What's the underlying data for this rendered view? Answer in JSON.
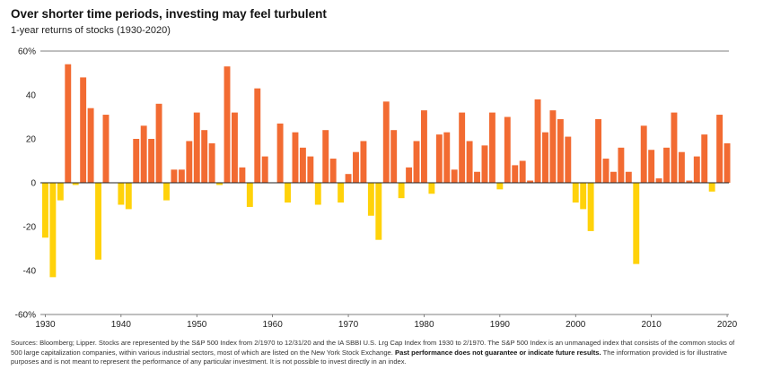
{
  "header": {
    "title": "Over shorter time periods, investing may feel turbulent",
    "subtitle": "1-year returns of stocks (1930-2020)"
  },
  "footer": {
    "source_part1": "Sources: Bloomberg; Lipper. Stocks are represented by the S&P 500 Index from 2/1970 to 12/31/20 and the IA SBBI U.S. Lrg Cap Index from 1930 to 2/1970. The S&P 500 Index is an unmanaged index that consists of the common stocks of 500 large capitalization companies, within various industrial sectors, most of which are listed on the New York Stock Exchange.",
    "source_bold": "Past performance does not guarantee or indicate future results.",
    "source_part2": "The information provided is for illustrative purposes and is not meant to represent the performance of any particular investment. It is not possible to invest directly in an index."
  },
  "colors": {
    "positive": "#F26B32",
    "negative": "#FFD20A",
    "axis": "#222222",
    "grid": "#555555"
  },
  "chart_data": {
    "type": "bar",
    "title": "Over shorter time periods, investing may feel turbulent",
    "subtitle": "1-year returns of stocks (1930-2020)",
    "xlabel": "",
    "ylabel": "",
    "ylim": [
      -60,
      60
    ],
    "yticks": [
      60,
      40,
      20,
      0,
      -20,
      -40,
      -60
    ],
    "ytick_labels": [
      "60%",
      "40",
      "20",
      "0",
      "-20",
      "-40",
      "-60%"
    ],
    "xticks": [
      1930,
      1940,
      1950,
      1960,
      1970,
      1980,
      1990,
      2000,
      2010,
      2020
    ],
    "xtick_labels": [
      "1930",
      "1940",
      "1950",
      "1960",
      "1970",
      "1980",
      "1990",
      "2000",
      "2010",
      "2020"
    ],
    "grid": "top and bottom reference lines",
    "legend": "none",
    "years": [
      1930,
      1931,
      1932,
      1933,
      1934,
      1935,
      1936,
      1937,
      1938,
      1939,
      1940,
      1941,
      1942,
      1943,
      1944,
      1945,
      1946,
      1947,
      1948,
      1949,
      1950,
      1951,
      1952,
      1953,
      1954,
      1955,
      1956,
      1957,
      1958,
      1959,
      1960,
      1961,
      1962,
      1963,
      1964,
      1965,
      1966,
      1967,
      1968,
      1969,
      1970,
      1971,
      1972,
      1973,
      1974,
      1975,
      1976,
      1977,
      1978,
      1979,
      1980,
      1981,
      1982,
      1983,
      1984,
      1985,
      1986,
      1987,
      1988,
      1989,
      1990,
      1991,
      1992,
      1993,
      1994,
      1995,
      1996,
      1997,
      1998,
      1999,
      2000,
      2001,
      2002,
      2003,
      2004,
      2005,
      2006,
      2007,
      2008,
      2009,
      2010,
      2011,
      2012,
      2013,
      2014,
      2015,
      2016,
      2017,
      2018,
      2019,
      2020
    ],
    "values": [
      -25,
      -43,
      -8,
      54,
      -1,
      48,
      34,
      -35,
      31,
      0,
      -10,
      -12,
      20,
      26,
      20,
      36,
      -8,
      6,
      6,
      19,
      32,
      24,
      18,
      -1,
      53,
      32,
      7,
      -11,
      43,
      12,
      0,
      27,
      -9,
      23,
      16,
      12,
      -10,
      24,
      11,
      -9,
      4,
      14,
      19,
      -15,
      -26,
      37,
      24,
      -7,
      7,
      19,
      33,
      -5,
      22,
      23,
      6,
      32,
      19,
      5,
      17,
      32,
      -3,
      30,
      8,
      10,
      1,
      38,
      23,
      33,
      29,
      21,
      -9,
      -12,
      -22,
      29,
      11,
      5,
      16,
      5,
      -37,
      26,
      15,
      2,
      16,
      32,
      14,
      1,
      12,
      22,
      -4,
      31,
      18
    ]
  }
}
